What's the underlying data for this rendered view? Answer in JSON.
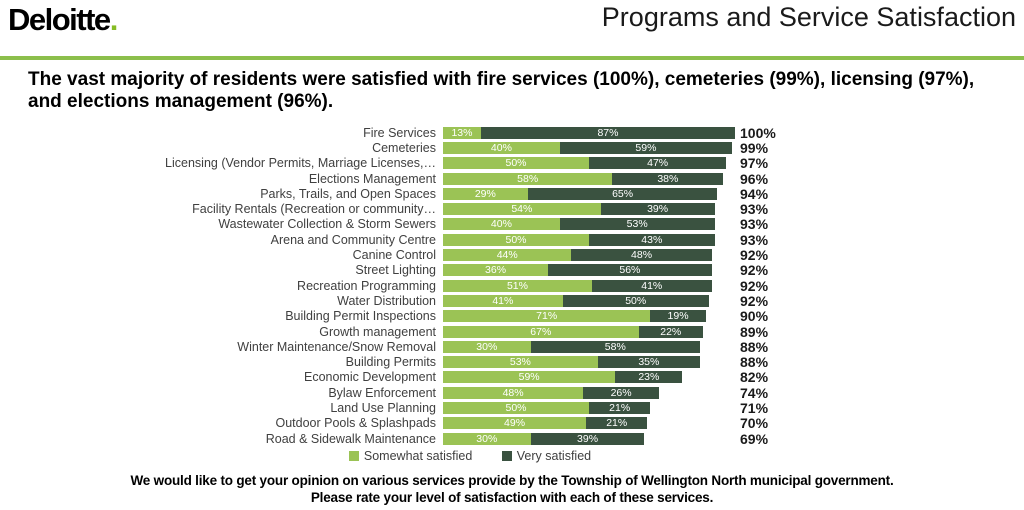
{
  "header": {
    "logo_text": "Deloitte",
    "logo_dot": ".",
    "title": "Programs and Service Satisfaction"
  },
  "headline": "The vast majority of residents were satisfied with fire services (100%), cemeteries (99%), licensing (97%), and elections management (96%).",
  "chart_data": {
    "type": "bar",
    "orientation": "horizontal",
    "stacked": true,
    "grid": false,
    "xlim": [
      0,
      100
    ],
    "legend_position": "bottom",
    "categories": [
      "Fire Services",
      "Cemeteries",
      "Licensing (Vendor Permits, Marriage Licenses,…",
      "Elections Management",
      "Parks, Trails, and Open Spaces",
      "Facility Rentals (Recreation or community…",
      "Wastewater Collection & Storm Sewers",
      "Arena and Community Centre",
      "Canine Control",
      "Street Lighting",
      "Recreation Programming",
      "Water Distribution",
      "Building Permit Inspections",
      "Growth management",
      "Winter Maintenance/Snow Removal",
      "Building Permits",
      "Economic Development",
      "Bylaw Enforcement",
      "Land Use Planning",
      "Outdoor Pools & Splashpads",
      "Road & Sidewalk Maintenance"
    ],
    "series": [
      {
        "name": "Somewhat satisfied",
        "color": "#9BC355",
        "values": [
          13,
          40,
          50,
          58,
          29,
          54,
          40,
          50,
          44,
          36,
          51,
          41,
          71,
          67,
          30,
          53,
          59,
          48,
          50,
          49,
          30
        ]
      },
      {
        "name": "Very satisfied",
        "color": "#3A5240",
        "values": [
          87,
          59,
          47,
          38,
          65,
          39,
          53,
          43,
          48,
          56,
          41,
          50,
          19,
          22,
          58,
          35,
          23,
          26,
          21,
          21,
          39
        ]
      }
    ],
    "totals": [
      100,
      99,
      97,
      96,
      94,
      93,
      93,
      93,
      92,
      92,
      92,
      92,
      90,
      89,
      88,
      88,
      82,
      74,
      71,
      70,
      69
    ],
    "value_suffix": "%"
  },
  "footer": {
    "line1": "We would like to get your opinion on various services provide by the Township of Wellington North municipal government.",
    "line2": "Please rate your level of satisfaction with each of these services."
  },
  "colors": {
    "somewhat_satisfied": "#9BC355",
    "very_satisfied": "#3A5240",
    "divider_green": "#8CBF4C",
    "logo_dot_green": "#86BC25",
    "label_gray": "#404040"
  }
}
